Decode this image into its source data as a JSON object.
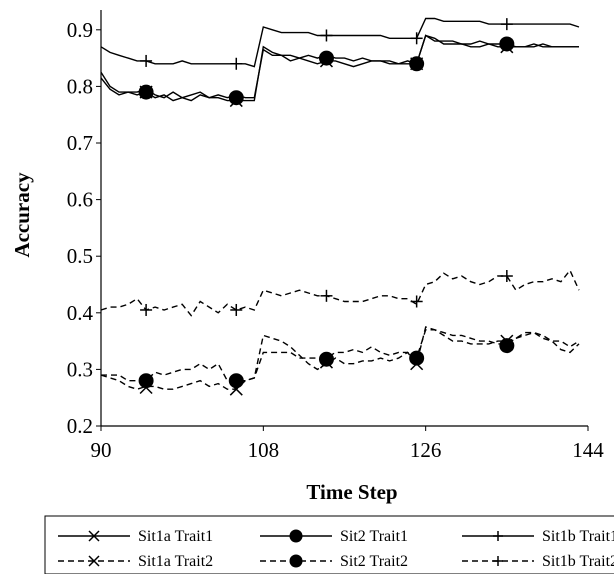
{
  "chart_data": {
    "type": "line",
    "title": "",
    "xlabel": "Time Step",
    "ylabel": "Accuracy",
    "xlim": [
      90,
      144
    ],
    "ylim": [
      0.2,
      0.95
    ],
    "x_ticks": [
      "90",
      "108",
      "126",
      "144"
    ],
    "y_ticks": [
      "0.2",
      "0.3",
      "0.4",
      "0.5",
      "0.6",
      "0.7",
      "0.8",
      "0.9"
    ],
    "grid": false,
    "legend_position": "bottom",
    "series": [
      {
        "name": "Sit1a Trait1",
        "line": "solid",
        "marker": "x",
        "x": [
          90,
          91,
          92,
          93,
          94,
          95,
          96,
          97,
          98,
          99,
          100,
          101,
          102,
          103,
          104,
          105,
          106,
          107,
          108,
          109,
          110,
          111,
          112,
          113,
          114,
          115,
          116,
          117,
          118,
          119,
          120,
          121,
          122,
          123,
          124,
          125,
          126,
          127,
          128,
          129,
          130,
          131,
          132,
          133,
          134,
          135,
          136,
          137,
          138,
          139,
          140,
          141,
          142,
          143
        ],
        "y": [
          0.825,
          0.8,
          0.79,
          0.79,
          0.785,
          0.79,
          0.78,
          0.785,
          0.775,
          0.78,
          0.775,
          0.785,
          0.78,
          0.78,
          0.775,
          0.775,
          0.775,
          0.775,
          0.87,
          0.86,
          0.855,
          0.845,
          0.85,
          0.845,
          0.84,
          0.845,
          0.845,
          0.84,
          0.835,
          0.84,
          0.845,
          0.845,
          0.84,
          0.84,
          0.84,
          0.84,
          0.89,
          0.885,
          0.875,
          0.875,
          0.875,
          0.87,
          0.87,
          0.875,
          0.87,
          0.87,
          0.87,
          0.87,
          0.875,
          0.87,
          0.87,
          0.87,
          0.87,
          0.87
        ],
        "marker_x": [
          95,
          105,
          115,
          125,
          135
        ],
        "marker_y": [
          0.79,
          0.775,
          0.845,
          0.84,
          0.87
        ]
      },
      {
        "name": "Sit2 Trait1",
        "line": "solid",
        "marker": "dot",
        "x": [
          90,
          91,
          92,
          93,
          94,
          95,
          96,
          97,
          98,
          99,
          100,
          101,
          102,
          103,
          104,
          105,
          106,
          107,
          108,
          109,
          110,
          111,
          112,
          113,
          114,
          115,
          116,
          117,
          118,
          119,
          120,
          121,
          122,
          123,
          124,
          125,
          126,
          127,
          128,
          129,
          130,
          131,
          132,
          133,
          134,
          135,
          136,
          137,
          138,
          139,
          140,
          141,
          142,
          143
        ],
        "y": [
          0.815,
          0.795,
          0.785,
          0.79,
          0.79,
          0.795,
          0.785,
          0.78,
          0.79,
          0.78,
          0.785,
          0.79,
          0.78,
          0.785,
          0.78,
          0.785,
          0.78,
          0.78,
          0.865,
          0.855,
          0.855,
          0.855,
          0.85,
          0.855,
          0.85,
          0.855,
          0.85,
          0.85,
          0.845,
          0.85,
          0.845,
          0.845,
          0.845,
          0.84,
          0.845,
          0.84,
          0.89,
          0.88,
          0.88,
          0.88,
          0.875,
          0.875,
          0.88,
          0.875,
          0.875,
          0.875,
          0.87,
          0.87,
          0.87,
          0.875,
          0.87,
          0.87,
          0.87,
          0.87
        ],
        "marker_x": [
          95,
          105,
          115,
          125,
          135
        ],
        "marker_y": [
          0.79,
          0.78,
          0.85,
          0.84,
          0.875
        ]
      },
      {
        "name": "Sit1b Trait1",
        "line": "solid",
        "marker": "plus",
        "x": [
          90,
          91,
          92,
          93,
          94,
          95,
          96,
          97,
          98,
          99,
          100,
          101,
          102,
          103,
          104,
          105,
          106,
          107,
          108,
          109,
          110,
          111,
          112,
          113,
          114,
          115,
          116,
          117,
          118,
          119,
          120,
          121,
          122,
          123,
          124,
          125,
          126,
          127,
          128,
          129,
          130,
          131,
          132,
          133,
          134,
          135,
          136,
          137,
          138,
          139,
          140,
          141,
          142,
          143
        ],
        "y": [
          0.87,
          0.86,
          0.855,
          0.85,
          0.845,
          0.845,
          0.84,
          0.84,
          0.84,
          0.845,
          0.84,
          0.84,
          0.84,
          0.84,
          0.84,
          0.84,
          0.84,
          0.835,
          0.905,
          0.9,
          0.895,
          0.895,
          0.895,
          0.895,
          0.89,
          0.89,
          0.89,
          0.89,
          0.89,
          0.89,
          0.89,
          0.89,
          0.885,
          0.885,
          0.885,
          0.885,
          0.92,
          0.92,
          0.915,
          0.915,
          0.915,
          0.915,
          0.915,
          0.91,
          0.91,
          0.91,
          0.91,
          0.91,
          0.91,
          0.91,
          0.91,
          0.91,
          0.91,
          0.905
        ],
        "marker_x": [
          95,
          105,
          115,
          125,
          135
        ],
        "marker_y": [
          0.845,
          0.84,
          0.89,
          0.885,
          0.91
        ]
      },
      {
        "name": "Sit1a Trait2",
        "line": "dashed",
        "marker": "x",
        "x": [
          90,
          91,
          92,
          93,
          94,
          95,
          96,
          97,
          98,
          99,
          100,
          101,
          102,
          103,
          104,
          105,
          106,
          107,
          108,
          109,
          110,
          111,
          112,
          113,
          114,
          115,
          116,
          117,
          118,
          119,
          120,
          121,
          122,
          123,
          124,
          125,
          126,
          127,
          128,
          129,
          130,
          131,
          132,
          133,
          134,
          135,
          136,
          137,
          138,
          139,
          140,
          141,
          142,
          143
        ],
        "y": [
          0.29,
          0.285,
          0.28,
          0.27,
          0.265,
          0.27,
          0.27,
          0.265,
          0.265,
          0.27,
          0.275,
          0.28,
          0.27,
          0.275,
          0.265,
          0.265,
          0.28,
          0.285,
          0.36,
          0.355,
          0.35,
          0.34,
          0.325,
          0.31,
          0.3,
          0.31,
          0.32,
          0.31,
          0.31,
          0.315,
          0.315,
          0.32,
          0.315,
          0.32,
          0.33,
          0.31,
          0.375,
          0.37,
          0.36,
          0.35,
          0.35,
          0.345,
          0.345,
          0.345,
          0.35,
          0.35,
          0.355,
          0.36,
          0.365,
          0.355,
          0.35,
          0.335,
          0.33,
          0.345
        ],
        "marker_x": [
          95,
          105,
          115,
          125,
          135
        ],
        "marker_y": [
          0.268,
          0.265,
          0.313,
          0.31,
          0.35
        ]
      },
      {
        "name": "Sit2 Trait2",
        "line": "dashed",
        "marker": "dot",
        "x": [
          90,
          91,
          92,
          93,
          94,
          95,
          96,
          97,
          98,
          99,
          100,
          101,
          102,
          103,
          104,
          105,
          106,
          107,
          108,
          109,
          110,
          111,
          112,
          113,
          114,
          115,
          116,
          117,
          118,
          119,
          120,
          121,
          122,
          123,
          124,
          125,
          126,
          127,
          128,
          129,
          130,
          131,
          132,
          133,
          134,
          135,
          136,
          137,
          138,
          139,
          140,
          141,
          142,
          143
        ],
        "y": [
          0.29,
          0.29,
          0.29,
          0.28,
          0.28,
          0.28,
          0.295,
          0.29,
          0.295,
          0.3,
          0.3,
          0.31,
          0.3,
          0.31,
          0.28,
          0.28,
          0.28,
          0.285,
          0.33,
          0.33,
          0.33,
          0.33,
          0.32,
          0.32,
          0.32,
          0.32,
          0.33,
          0.33,
          0.335,
          0.33,
          0.34,
          0.33,
          0.325,
          0.33,
          0.33,
          0.32,
          0.37,
          0.37,
          0.365,
          0.36,
          0.36,
          0.355,
          0.35,
          0.35,
          0.345,
          0.345,
          0.355,
          0.365,
          0.365,
          0.36,
          0.35,
          0.35,
          0.34,
          0.35
        ],
        "marker_x": [
          95,
          105,
          115,
          125,
          135
        ],
        "marker_y": [
          0.28,
          0.28,
          0.318,
          0.32,
          0.342
        ]
      },
      {
        "name": "Sit1b Trait2",
        "line": "dashed",
        "marker": "plus",
        "x": [
          90,
          91,
          92,
          93,
          94,
          95,
          96,
          97,
          98,
          99,
          100,
          101,
          102,
          103,
          104,
          105,
          106,
          107,
          108,
          109,
          110,
          111,
          112,
          113,
          114,
          115,
          116,
          117,
          118,
          119,
          120,
          121,
          122,
          123,
          124,
          125,
          126,
          127,
          128,
          129,
          130,
          131,
          132,
          133,
          134,
          135,
          136,
          137,
          138,
          139,
          140,
          141,
          142,
          143
        ],
        "y": [
          0.405,
          0.41,
          0.41,
          0.415,
          0.425,
          0.405,
          0.41,
          0.405,
          0.41,
          0.415,
          0.395,
          0.42,
          0.41,
          0.4,
          0.415,
          0.405,
          0.41,
          0.405,
          0.44,
          0.435,
          0.43,
          0.435,
          0.44,
          0.435,
          0.43,
          0.43,
          0.425,
          0.42,
          0.42,
          0.42,
          0.425,
          0.43,
          0.43,
          0.425,
          0.425,
          0.415,
          0.45,
          0.455,
          0.47,
          0.46,
          0.465,
          0.455,
          0.45,
          0.455,
          0.465,
          0.465,
          0.44,
          0.45,
          0.455,
          0.455,
          0.46,
          0.455,
          0.475,
          0.44
        ],
        "marker_x": [
          95,
          105,
          115,
          125,
          135
        ],
        "marker_y": [
          0.405,
          0.405,
          0.43,
          0.42,
          0.465
        ]
      }
    ]
  }
}
